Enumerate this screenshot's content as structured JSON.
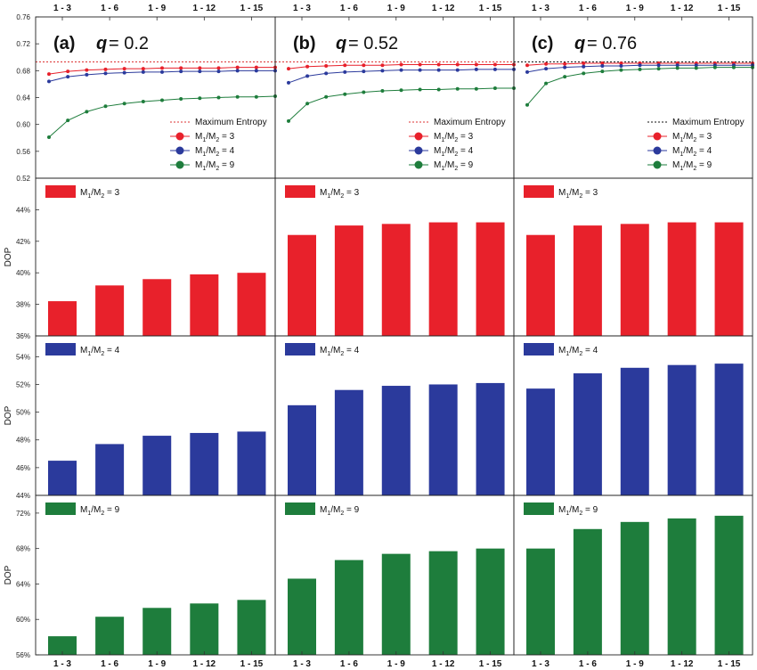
{
  "chart_data": {
    "type": "line",
    "x_categories": [
      "1 - 3",
      "1 - 6",
      "1 - 9",
      "1 - 12",
      "1 - 15"
    ],
    "top_row": {
      "y_ticks": [
        "0.76",
        "0.72",
        "0.68",
        "0.64",
        "0.60",
        "0.56",
        "0.52"
      ],
      "ylim": [
        0.52,
        0.76
      ],
      "max_entropy": 0.693,
      "legend_max_entropy": "Maximum Entropy",
      "panels": [
        {
          "label": "(a)",
          "q_symbol": "q",
          "q_eq": "= 0.2",
          "series": [
            {
              "name": "M1/M2 = 3",
              "name_prefix": "M",
              "sub1": "1",
              "name_mid": "/M",
              "sub2": "2",
              "name_suffix": " = 3",
              "color": "#e8212b",
              "values": [
                0.675,
                0.679,
                0.681,
                0.682,
                0.683,
                0.683,
                0.684,
                0.684,
                0.684,
                0.684,
                0.685,
                0.685,
                0.685
              ]
            },
            {
              "name": "M1/M2 = 4",
              "name_prefix": "M",
              "sub1": "1",
              "name_mid": "/M",
              "sub2": "2",
              "name_suffix": " = 4",
              "color": "#2b3a9c",
              "values": [
                0.664,
                0.671,
                0.674,
                0.676,
                0.677,
                0.678,
                0.678,
                0.679,
                0.679,
                0.679,
                0.68,
                0.68,
                0.68
              ]
            },
            {
              "name": "M1/M2 = 9",
              "name_prefix": "M",
              "sub1": "1",
              "name_mid": "/M",
              "sub2": "2",
              "name_suffix": " = 9",
              "color": "#1e7d3c",
              "values": [
                0.581,
                0.606,
                0.619,
                0.627,
                0.631,
                0.634,
                0.636,
                0.638,
                0.639,
                0.64,
                0.641,
                0.641,
                0.642
              ]
            }
          ]
        },
        {
          "label": "(b)",
          "q_symbol": "q",
          "q_eq": "= 0.52",
          "series": [
            {
              "name": "M1/M2 = 3",
              "name_prefix": "M",
              "sub1": "1",
              "name_mid": "/M",
              "sub2": "2",
              "name_suffix": " = 3",
              "color": "#e8212b",
              "values": [
                0.683,
                0.686,
                0.687,
                0.688,
                0.688,
                0.688,
                0.689,
                0.689,
                0.689,
                0.689,
                0.689,
                0.689,
                0.689
              ]
            },
            {
              "name": "M1/M2 = 4",
              "name_prefix": "M",
              "sub1": "1",
              "name_mid": "/M",
              "sub2": "2",
              "name_suffix": " = 4",
              "color": "#2b3a9c",
              "values": [
                0.662,
                0.672,
                0.676,
                0.678,
                0.679,
                0.68,
                0.681,
                0.681,
                0.681,
                0.681,
                0.682,
                0.682,
                0.682
              ]
            },
            {
              "name": "M1/M2 = 9",
              "name_prefix": "M",
              "sub1": "1",
              "name_mid": "/M",
              "sub2": "2",
              "name_suffix": " = 9",
              "color": "#1e7d3c",
              "values": [
                0.605,
                0.631,
                0.641,
                0.645,
                0.648,
                0.65,
                0.651,
                0.652,
                0.652,
                0.653,
                0.653,
                0.654,
                0.654
              ]
            }
          ]
        },
        {
          "label": "(c)",
          "q_symbol": "q",
          "q_eq": "= 0.76",
          "series": [
            {
              "name": "M1/M2 = 3",
              "name_prefix": "M",
              "sub1": "1",
              "name_mid": "/M",
              "sub2": "2",
              "name_suffix": " = 3",
              "color": "#e8212b",
              "values": [
                0.688,
                0.69,
                0.69,
                0.691,
                0.691,
                0.691,
                0.691,
                0.691,
                0.691,
                0.691,
                0.691,
                0.691,
                0.691
              ]
            },
            {
              "name": "M1/M2 = 4",
              "name_prefix": "M",
              "sub1": "1",
              "name_mid": "/M",
              "sub2": "2",
              "name_suffix": " = 4",
              "color": "#2b3a9c",
              "values": [
                0.678,
                0.683,
                0.685,
                0.686,
                0.687,
                0.687,
                0.688,
                0.688,
                0.688,
                0.688,
                0.688,
                0.688,
                0.688
              ]
            },
            {
              "name": "M1/M2 = 9",
              "name_prefix": "M",
              "sub1": "1",
              "name_mid": "/M",
              "sub2": "2",
              "name_suffix": " = 9",
              "color": "#1e7d3c",
              "values": [
                0.629,
                0.661,
                0.671,
                0.676,
                0.679,
                0.681,
                0.682,
                0.683,
                0.684,
                0.684,
                0.685,
                0.685,
                0.685
              ]
            }
          ]
        }
      ]
    },
    "bar_rows": [
      {
        "ylabel": "DOP",
        "color": "#e8212b",
        "legend_prefix": "M",
        "sub1": "1",
        "legend_mid": "/M",
        "sub2": "2",
        "legend_suffix": " = 3",
        "y_ticks": [
          "44%",
          "42%",
          "40%",
          "38%",
          "36%"
        ],
        "ylim": [
          36,
          46
        ],
        "panels": [
          [
            38.2,
            39.2,
            39.6,
            39.9,
            40.0
          ],
          [
            42.4,
            43.0,
            43.1,
            43.2,
            43.2
          ],
          [
            42.4,
            43.0,
            43.1,
            43.2,
            43.2
          ]
        ]
      },
      {
        "ylabel": "DOP",
        "color": "#2b3a9c",
        "legend_prefix": "M",
        "sub1": "1",
        "legend_mid": "/M",
        "sub2": "2",
        "legend_suffix": " = 4",
        "y_ticks": [
          "54%",
          "52%",
          "50%",
          "48%",
          "46%",
          "44%"
        ],
        "ylim": [
          44,
          55.5
        ],
        "panels": [
          [
            46.5,
            47.7,
            48.3,
            48.5,
            48.6
          ],
          [
            50.5,
            51.6,
            51.9,
            52.0,
            52.1
          ],
          [
            51.7,
            52.8,
            53.2,
            53.4,
            53.5
          ]
        ]
      },
      {
        "ylabel": "DOP",
        "color": "#1e7d3c",
        "legend_prefix": "M",
        "sub1": "1",
        "legend_mid": "/M",
        "sub2": "2",
        "legend_suffix": " = 9",
        "y_ticks": [
          "72%",
          "68%",
          "64%",
          "60%",
          "56%"
        ],
        "ylim": [
          56,
          74
        ],
        "panels": [
          [
            58.1,
            60.3,
            61.3,
            61.8,
            62.2
          ],
          [
            64.6,
            66.7,
            67.4,
            67.7,
            68.0
          ],
          [
            68.0,
            70.2,
            71.0,
            71.4,
            71.7
          ]
        ]
      }
    ]
  }
}
